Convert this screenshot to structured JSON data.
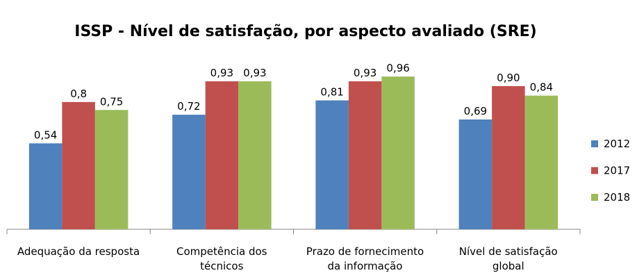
{
  "chart_data": {
    "type": "bar",
    "title": "ISSP - Nível de satisfação, por aspecto avaliado (SRE)",
    "categories": [
      "Adequação da resposta",
      "Competência dos\ntécnicos",
      "Prazo de fornecimento\nda informação",
      "Nível de satisfação\nglobal"
    ],
    "series": [
      {
        "name": "2012",
        "color": "#4f81bd",
        "values": [
          0.54,
          0.72,
          0.81,
          0.69
        ],
        "value_labels": [
          "0,54",
          "0,72",
          "0,81",
          "0,69"
        ]
      },
      {
        "name": "2017",
        "color": "#c0504d",
        "values": [
          0.8,
          0.93,
          0.93,
          0.9
        ],
        "value_labels": [
          "0,8",
          "0,93",
          "0,93",
          "0,90"
        ]
      },
      {
        "name": "2018",
        "color": "#9bbb59",
        "values": [
          0.75,
          0.93,
          0.96,
          0.84
        ],
        "value_labels": [
          "0,75",
          "0,93",
          "0,96",
          "0,84"
        ]
      }
    ],
    "ylim": [
      0,
      1
    ],
    "legend": "right"
  }
}
